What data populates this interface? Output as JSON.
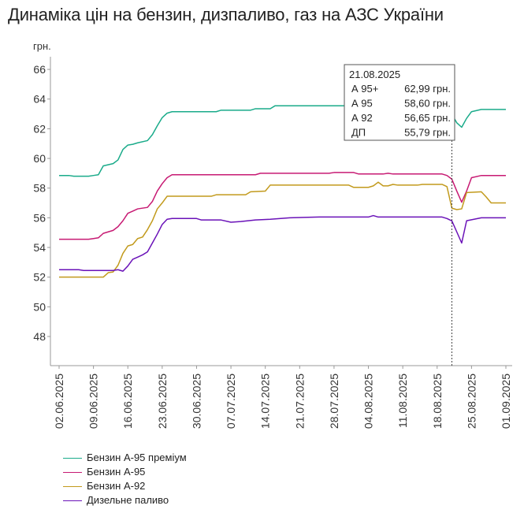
{
  "title": "Динаміка цін на бензин, дизпаливо, газ на АЗС України",
  "chart_data": {
    "type": "line",
    "title": "Динаміка цін на бензин, дизпаливо, газ на АЗС України",
    "ylabel": "грн.",
    "ylim": [
      46,
      66.5
    ],
    "yticks": [
      48,
      50,
      52,
      54,
      56,
      58,
      60,
      62,
      64,
      66
    ],
    "x_tick_labels": [
      "02.06.2025",
      "09.06.2025",
      "16.06.2025",
      "23.06.2025",
      "30.06.2025",
      "07.07.2025",
      "14.07.2025",
      "21.07.2025",
      "28.07.2025",
      "04.08.2025",
      "11.08.2025",
      "18.08.2025",
      "25.08.2025",
      "01.09.2025"
    ],
    "grid": false,
    "legend_position": "bottom-left",
    "series": [
      {
        "name": "Бензин А-95 преміум",
        "color": "#1aab8a",
        "points": [
          [
            "2025-06-02",
            58.85
          ],
          [
            "2025-06-04",
            58.85
          ],
          [
            "2025-06-05",
            58.8
          ],
          [
            "2025-06-08",
            58.8
          ],
          [
            "2025-06-09",
            58.85
          ],
          [
            "2025-06-10",
            58.9
          ],
          [
            "2025-06-11",
            59.5
          ],
          [
            "2025-06-13",
            59.65
          ],
          [
            "2025-06-14",
            59.9
          ],
          [
            "2025-06-15",
            60.6
          ],
          [
            "2025-06-16",
            60.9
          ],
          [
            "2025-06-17",
            60.95
          ],
          [
            "2025-06-18",
            61.05
          ],
          [
            "2025-06-20",
            61.2
          ],
          [
            "2025-06-21",
            61.6
          ],
          [
            "2025-06-22",
            62.2
          ],
          [
            "2025-06-23",
            62.75
          ],
          [
            "2025-06-24",
            63.05
          ],
          [
            "2025-06-25",
            63.15
          ],
          [
            "2025-07-04",
            63.15
          ],
          [
            "2025-07-05",
            63.25
          ],
          [
            "2025-07-11",
            63.25
          ],
          [
            "2025-07-12",
            63.35
          ],
          [
            "2025-07-15",
            63.35
          ],
          [
            "2025-07-16",
            63.55
          ],
          [
            "2025-08-19",
            63.55
          ],
          [
            "2025-08-20",
            63.4
          ],
          [
            "2025-08-21",
            62.99
          ],
          [
            "2025-08-22",
            62.4
          ],
          [
            "2025-08-23",
            62.1
          ],
          [
            "2025-08-24",
            62.7
          ],
          [
            "2025-08-25",
            63.15
          ],
          [
            "2025-08-27",
            63.3
          ],
          [
            "2025-09-01",
            63.3
          ]
        ]
      },
      {
        "name": "Бензин А-95",
        "color": "#c71a73",
        "points": [
          [
            "2025-06-02",
            54.55
          ],
          [
            "2025-06-08",
            54.55
          ],
          [
            "2025-06-09",
            54.6
          ],
          [
            "2025-06-10",
            54.65
          ],
          [
            "2025-06-11",
            54.95
          ],
          [
            "2025-06-12",
            55.05
          ],
          [
            "2025-06-13",
            55.15
          ],
          [
            "2025-06-14",
            55.4
          ],
          [
            "2025-06-15",
            55.8
          ],
          [
            "2025-06-16",
            56.3
          ],
          [
            "2025-06-17",
            56.45
          ],
          [
            "2025-06-18",
            56.6
          ],
          [
            "2025-06-20",
            56.7
          ],
          [
            "2025-06-21",
            57.1
          ],
          [
            "2025-06-22",
            57.8
          ],
          [
            "2025-06-23",
            58.3
          ],
          [
            "2025-06-24",
            58.7
          ],
          [
            "2025-06-25",
            58.9
          ],
          [
            "2025-07-12",
            58.9
          ],
          [
            "2025-07-13",
            59.0
          ],
          [
            "2025-07-27",
            59.0
          ],
          [
            "2025-07-28",
            59.05
          ],
          [
            "2025-08-01",
            59.05
          ],
          [
            "2025-08-02",
            58.95
          ],
          [
            "2025-08-07",
            58.95
          ],
          [
            "2025-08-08",
            59.0
          ],
          [
            "2025-08-09",
            58.95
          ],
          [
            "2025-08-19",
            58.95
          ],
          [
            "2025-08-20",
            58.85
          ],
          [
            "2025-08-21",
            58.6
          ],
          [
            "2025-08-22",
            57.8
          ],
          [
            "2025-08-23",
            57.05
          ],
          [
            "2025-08-24",
            57.8
          ],
          [
            "2025-08-25",
            58.7
          ],
          [
            "2025-08-27",
            58.85
          ],
          [
            "2025-09-01",
            58.85
          ]
        ]
      },
      {
        "name": "Бензин А-92",
        "color": "#c29a1c",
        "points": [
          [
            "2025-06-02",
            52.0
          ],
          [
            "2025-06-11",
            52.0
          ],
          [
            "2025-06-12",
            52.3
          ],
          [
            "2025-06-13",
            52.35
          ],
          [
            "2025-06-14",
            52.8
          ],
          [
            "2025-06-15",
            53.6
          ],
          [
            "2025-06-16",
            54.1
          ],
          [
            "2025-06-17",
            54.2
          ],
          [
            "2025-06-18",
            54.6
          ],
          [
            "2025-06-19",
            54.7
          ],
          [
            "2025-06-20",
            55.2
          ],
          [
            "2025-06-21",
            55.8
          ],
          [
            "2025-06-22",
            56.6
          ],
          [
            "2025-06-23",
            57.0
          ],
          [
            "2025-06-24",
            57.45
          ],
          [
            "2025-07-03",
            57.45
          ],
          [
            "2025-07-04",
            57.55
          ],
          [
            "2025-07-10",
            57.55
          ],
          [
            "2025-07-11",
            57.75
          ],
          [
            "2025-07-14",
            57.8
          ],
          [
            "2025-07-15",
            58.2
          ],
          [
            "2025-07-31",
            58.2
          ],
          [
            "2025-08-01",
            58.05
          ],
          [
            "2025-08-04",
            58.05
          ],
          [
            "2025-08-05",
            58.15
          ],
          [
            "2025-08-06",
            58.4
          ],
          [
            "2025-08-07",
            58.15
          ],
          [
            "2025-08-08",
            58.15
          ],
          [
            "2025-08-09",
            58.25
          ],
          [
            "2025-08-10",
            58.2
          ],
          [
            "2025-08-14",
            58.2
          ],
          [
            "2025-08-15",
            58.25
          ],
          [
            "2025-08-19",
            58.25
          ],
          [
            "2025-08-20",
            58.1
          ],
          [
            "2025-08-21",
            56.65
          ],
          [
            "2025-08-22",
            56.55
          ],
          [
            "2025-08-23",
            56.6
          ],
          [
            "2025-08-24",
            57.7
          ],
          [
            "2025-08-27",
            57.75
          ],
          [
            "2025-08-28",
            57.4
          ],
          [
            "2025-08-29",
            57.0
          ],
          [
            "2025-09-01",
            57.0
          ]
        ]
      },
      {
        "name": "Дизельне паливо",
        "color": "#6a12b8",
        "points": [
          [
            "2025-06-02",
            52.5
          ],
          [
            "2025-06-06",
            52.5
          ],
          [
            "2025-06-07",
            52.45
          ],
          [
            "2025-06-13",
            52.45
          ],
          [
            "2025-06-14",
            52.5
          ],
          [
            "2025-06-15",
            52.4
          ],
          [
            "2025-06-16",
            52.75
          ],
          [
            "2025-06-17",
            53.2
          ],
          [
            "2025-06-18",
            53.35
          ],
          [
            "2025-06-19",
            53.5
          ],
          [
            "2025-06-20",
            53.7
          ],
          [
            "2025-06-21",
            54.3
          ],
          [
            "2025-06-22",
            54.9
          ],
          [
            "2025-06-23",
            55.55
          ],
          [
            "2025-06-24",
            55.9
          ],
          [
            "2025-06-25",
            55.95
          ],
          [
            "2025-06-30",
            55.95
          ],
          [
            "2025-07-01",
            55.85
          ],
          [
            "2025-07-05",
            55.85
          ],
          [
            "2025-07-07",
            55.7
          ],
          [
            "2025-07-09",
            55.75
          ],
          [
            "2025-07-12",
            55.85
          ],
          [
            "2025-07-15",
            55.9
          ],
          [
            "2025-07-19",
            56.0
          ],
          [
            "2025-07-25",
            56.05
          ],
          [
            "2025-08-04",
            56.05
          ],
          [
            "2025-08-05",
            56.15
          ],
          [
            "2025-08-06",
            56.05
          ],
          [
            "2025-08-19",
            56.05
          ],
          [
            "2025-08-20",
            55.95
          ],
          [
            "2025-08-21",
            55.79
          ],
          [
            "2025-08-22",
            55.05
          ],
          [
            "2025-08-23",
            54.3
          ],
          [
            "2025-08-24",
            55.8
          ],
          [
            "2025-08-27",
            56.0
          ],
          [
            "2025-09-01",
            56.0
          ]
        ]
      }
    ],
    "tooltip": {
      "date": "21.08.2025",
      "rows": [
        {
          "label": "А 95+",
          "value": "62,99 грн."
        },
        {
          "label": "А 95",
          "value": "58,60 грн."
        },
        {
          "label": "А 92",
          "value": "56,65 грн."
        },
        {
          "label": "ДП",
          "value": "55,79 грн."
        }
      ]
    }
  }
}
